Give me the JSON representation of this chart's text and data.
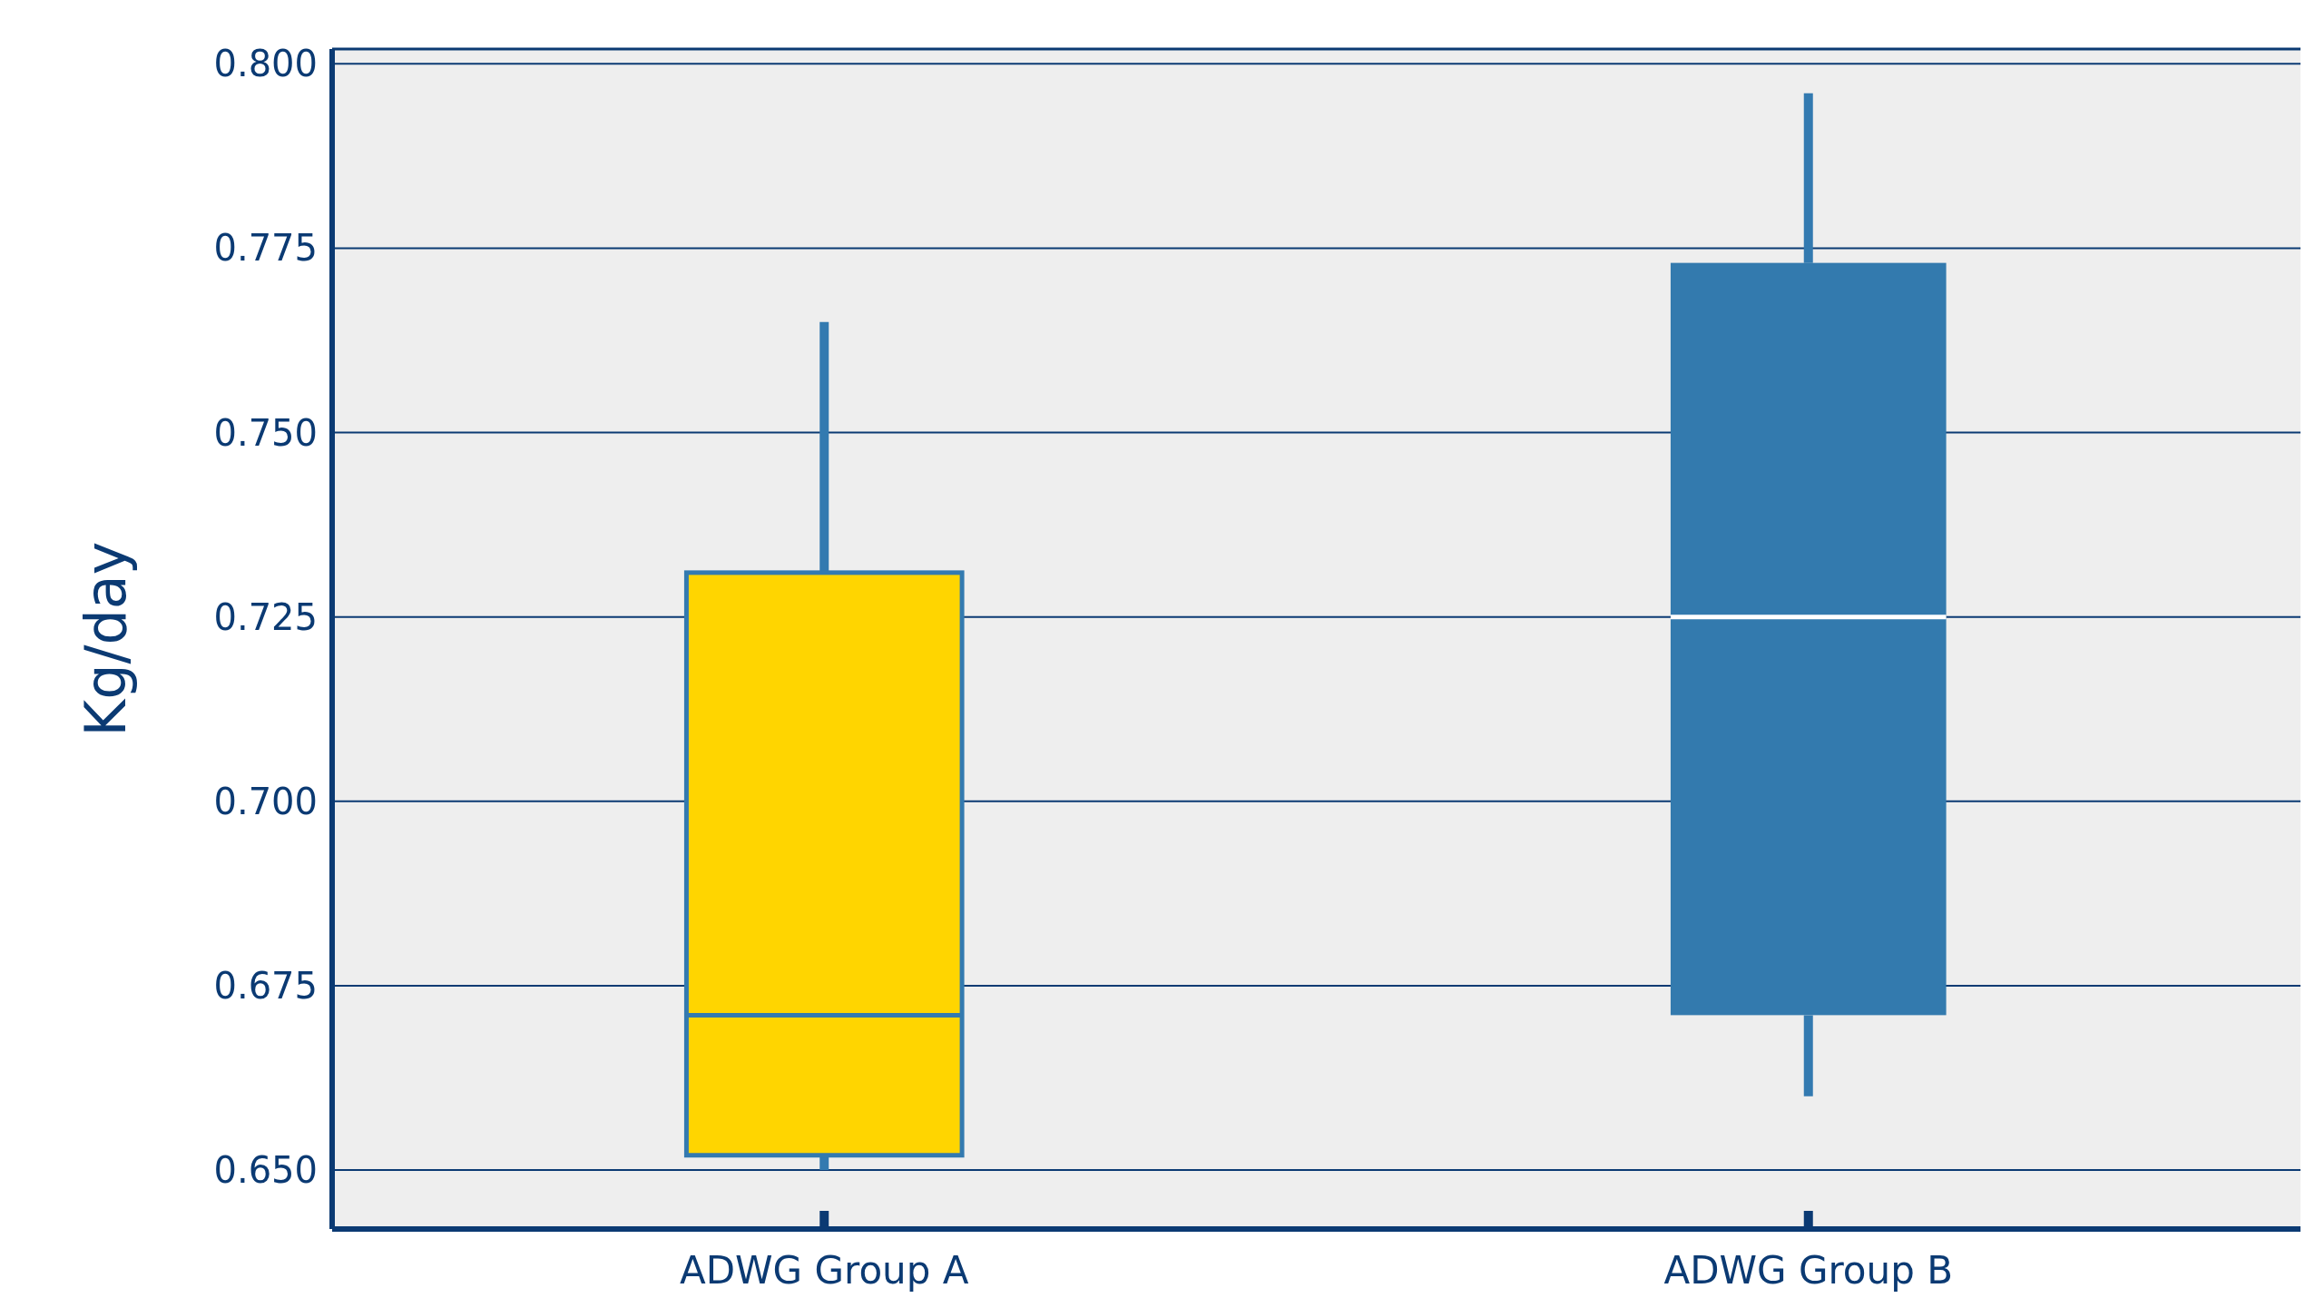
{
  "chart_data": {
    "type": "box",
    "ylabel": "Kg/day",
    "categories": [
      "ADWG Group A",
      "ADWG Group B"
    ],
    "boxes": [
      {
        "low": 0.65,
        "q1": 0.652,
        "median": 0.671,
        "q3": 0.731,
        "high": 0.765
      },
      {
        "low": 0.66,
        "q1": 0.671,
        "median": 0.725,
        "q3": 0.773,
        "high": 0.796
      }
    ],
    "colors": [
      "#ffd500",
      "#337aae"
    ],
    "ylim": [
      0.642,
      0.802
    ],
    "yticks": [
      {
        "value": 0.65,
        "label": "0.650"
      },
      {
        "value": 0.675,
        "label": "0.675"
      },
      {
        "value": 0.7,
        "label": "0.700"
      },
      {
        "value": 0.725,
        "label": "0.725"
      },
      {
        "value": 0.75,
        "label": "0.750"
      },
      {
        "value": 0.775,
        "label": "0.775"
      },
      {
        "value": 0.8,
        "label": "0.800"
      }
    ],
    "grid": "y"
  }
}
